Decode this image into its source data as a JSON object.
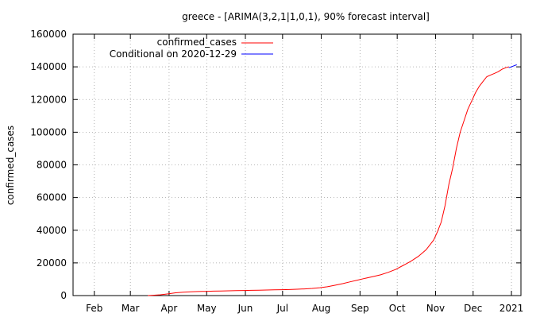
{
  "chart_data": {
    "type": "line",
    "title": "greece -  [ARIMA(3,2,1|1,0,1), 90% forecast interval]",
    "xlabel": "",
    "ylabel": "confirmed_cases",
    "xlim": [
      0,
      11.3
    ],
    "ylim": [
      0,
      160000
    ],
    "grid": true,
    "legend_position": "top-left",
    "x_ticks": [
      {
        "x": 0.56,
        "label": "Feb"
      },
      {
        "x": 1.51,
        "label": "Mar"
      },
      {
        "x": 2.53,
        "label": "Apr"
      },
      {
        "x": 3.52,
        "label": "May"
      },
      {
        "x": 4.54,
        "label": "Jun"
      },
      {
        "x": 5.52,
        "label": "Jul"
      },
      {
        "x": 6.54,
        "label": "Aug"
      },
      {
        "x": 7.56,
        "label": "Sep"
      },
      {
        "x": 8.54,
        "label": "Oct"
      },
      {
        "x": 9.55,
        "label": "Nov"
      },
      {
        "x": 10.54,
        "label": "Dec"
      },
      {
        "x": 11.55,
        "label": "2021"
      }
    ],
    "y_ticks": [
      0,
      20000,
      40000,
      60000,
      80000,
      100000,
      120000,
      140000,
      160000
    ],
    "series": [
      {
        "name": "confirmed_cases",
        "color": "#ff0000",
        "x": [
          1.97,
          2.1,
          2.3,
          2.5,
          2.7,
          2.9,
          3.1,
          3.3,
          3.5,
          3.7,
          3.9,
          4.1,
          4.3,
          4.5,
          4.7,
          4.9,
          5.1,
          5.3,
          5.5,
          5.7,
          5.9,
          6.1,
          6.3,
          6.5,
          6.7,
          6.9,
          7.1,
          7.3,
          7.5,
          7.7,
          7.9,
          8.1,
          8.3,
          8.5,
          8.7,
          8.9,
          9.1,
          9.3,
          9.5,
          9.6,
          9.7,
          9.8,
          9.9,
          10.0,
          10.1,
          10.2,
          10.3,
          10.4,
          10.5,
          10.6,
          10.7,
          10.8,
          10.9,
          11.0,
          11.1,
          11.2,
          11.3,
          11.4,
          11.48
        ],
        "values": [
          0,
          200,
          500,
          1000,
          1700,
          2100,
          2300,
          2500,
          2600,
          2700,
          2800,
          2900,
          3000,
          3100,
          3200,
          3300,
          3400,
          3500,
          3600,
          3700,
          3900,
          4100,
          4400,
          4800,
          5400,
          6300,
          7300,
          8400,
          9500,
          10600,
          11600,
          12700,
          14200,
          16000,
          18500,
          21000,
          24000,
          28000,
          34000,
          39000,
          45000,
          55000,
          68000,
          78000,
          90000,
          100000,
          107000,
          114000,
          119000,
          124000,
          128000,
          131000,
          134000,
          135000,
          136000,
          137000,
          138500,
          139500,
          140000
        ]
      },
      {
        "name": "Conditional on 2020-12-29",
        "color": "#0000ff",
        "x": [
          11.48,
          11.55,
          11.62,
          11.69
        ],
        "values": [
          139500,
          140000,
          140700,
          141300
        ]
      }
    ]
  }
}
